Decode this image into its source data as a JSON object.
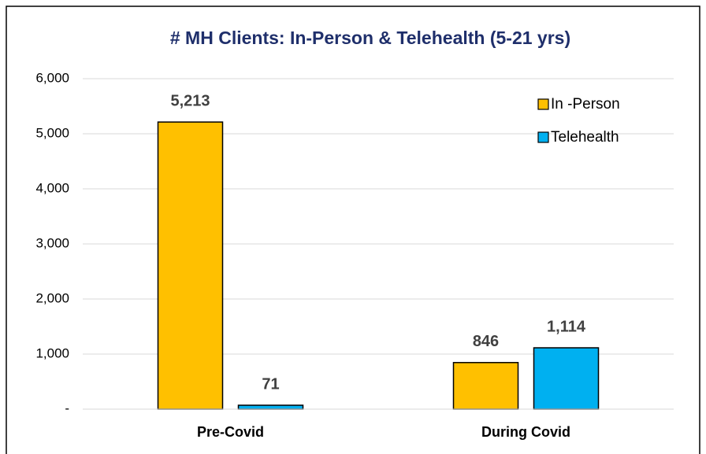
{
  "chart_data": {
    "type": "bar",
    "title": "# MH Clients: In-Person & Telehealth (5-21 yrs)",
    "categories": [
      "Pre-Covid",
      "During Covid"
    ],
    "series": [
      {
        "name": "In -Person",
        "color": "#ffc000",
        "values": [
          5213,
          846
        ],
        "value_labels": [
          "5,213",
          "846"
        ]
      },
      {
        "name": "Telehealth",
        "color": "#00b0f0",
        "values": [
          71,
          1114
        ],
        "value_labels": [
          "71",
          "1,114"
        ]
      }
    ],
    "ylim": [
      0,
      6000
    ],
    "yticks": [
      {
        "value": 0,
        "label": "-"
      },
      {
        "value": 1000,
        "label": "1,000"
      },
      {
        "value": 2000,
        "label": "2,000"
      },
      {
        "value": 3000,
        "label": "3,000"
      },
      {
        "value": 4000,
        "label": "4,000"
      },
      {
        "value": 5000,
        "label": "5,000"
      },
      {
        "value": 6000,
        "label": "6,000"
      }
    ],
    "grid": true,
    "legend": "top-right"
  }
}
